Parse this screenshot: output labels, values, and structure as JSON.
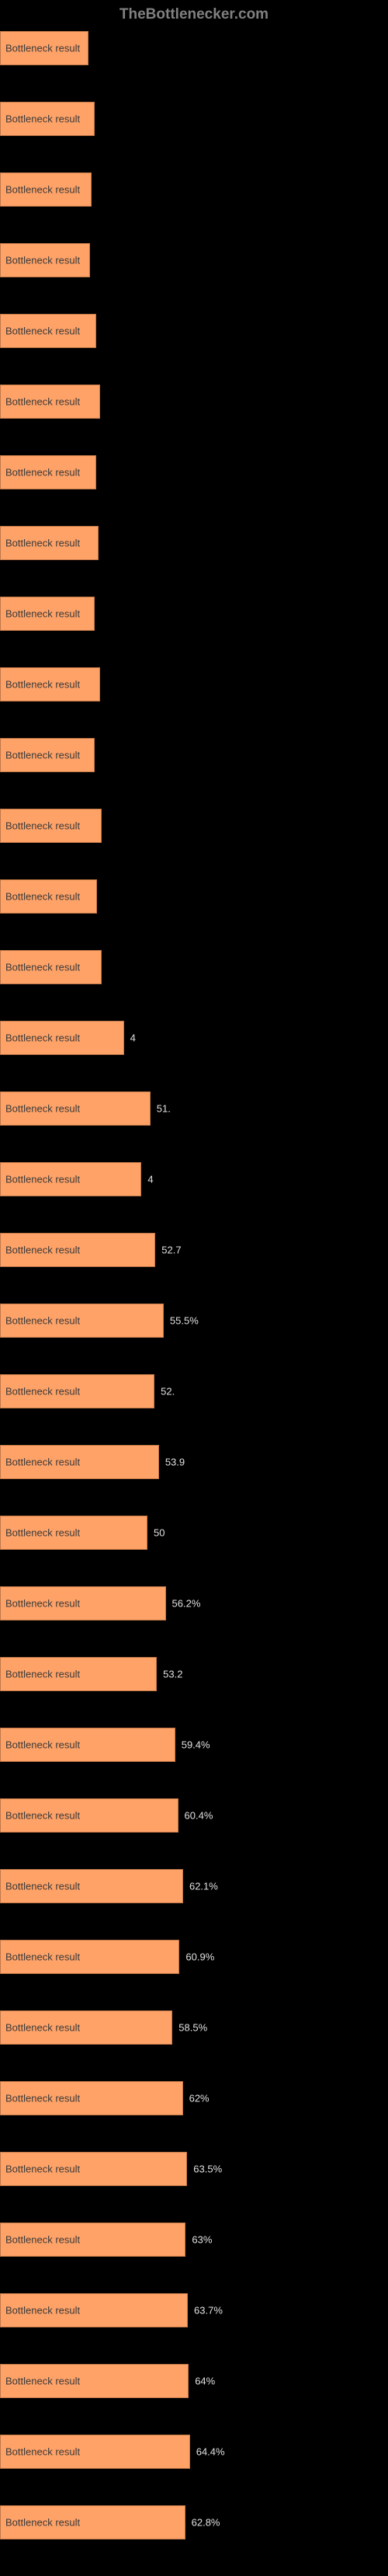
{
  "watermark": {
    "text": "TheBottlenecker.com",
    "color": "#808080"
  },
  "chart": {
    "type": "bar",
    "orientation": "horizontal",
    "background_color": "#000000",
    "bar_color": "#ffa267",
    "bar_border_color": "#c07848",
    "bar_label_color": "#3a3a3a",
    "value_label_color": "#e0e0e0",
    "chart_inner_width": 380,
    "max_value": 100,
    "rows": [
      {
        "label": "Bottleneck result",
        "value": 30.0,
        "value_text": ""
      },
      {
        "label": "Bottleneck result",
        "value": 32.0,
        "value_text": ""
      },
      {
        "label": "Bottleneck result",
        "value": 31.0,
        "value_text": ""
      },
      {
        "label": "Bottleneck result",
        "value": 30.5,
        "value_text": ""
      },
      {
        "label": "Bottleneck result",
        "value": 32.5,
        "value_text": ""
      },
      {
        "label": "Bottleneck result",
        "value": 34.0,
        "value_text": ""
      },
      {
        "label": "Bottleneck result",
        "value": 32.5,
        "value_text": ""
      },
      {
        "label": "Bottleneck result",
        "value": 33.5,
        "value_text": ""
      },
      {
        "label": "Bottleneck result",
        "value": 32.0,
        "value_text": ""
      },
      {
        "label": "Bottleneck result",
        "value": 34.0,
        "value_text": ""
      },
      {
        "label": "Bottleneck result",
        "value": 32.0,
        "value_text": ""
      },
      {
        "label": "Bottleneck result",
        "value": 34.5,
        "value_text": ""
      },
      {
        "label": "Bottleneck result",
        "value": 33.0,
        "value_text": ""
      },
      {
        "label": "Bottleneck result",
        "value": 34.5,
        "value_text": ""
      },
      {
        "label": "Bottleneck result",
        "value": 42.0,
        "value_text": "4"
      },
      {
        "label": "Bottleneck result",
        "value": 51.0,
        "value_text": "51."
      },
      {
        "label": "Bottleneck result",
        "value": 48.0,
        "value_text": "4"
      },
      {
        "label": "Bottleneck result",
        "value": 52.7,
        "value_text": "52.7"
      },
      {
        "label": "Bottleneck result",
        "value": 55.5,
        "value_text": "55.5%"
      },
      {
        "label": "Bottleneck result",
        "value": 52.4,
        "value_text": "52."
      },
      {
        "label": "Bottleneck result",
        "value": 53.9,
        "value_text": "53.9"
      },
      {
        "label": "Bottleneck result",
        "value": 50.0,
        "value_text": "50"
      },
      {
        "label": "Bottleneck result",
        "value": 56.2,
        "value_text": "56.2%"
      },
      {
        "label": "Bottleneck result",
        "value": 53.2,
        "value_text": "53.2"
      },
      {
        "label": "Bottleneck result",
        "value": 59.4,
        "value_text": "59.4%"
      },
      {
        "label": "Bottleneck result",
        "value": 60.4,
        "value_text": "60.4%"
      },
      {
        "label": "Bottleneck result",
        "value": 62.1,
        "value_text": "62.1%"
      },
      {
        "label": "Bottleneck result",
        "value": 60.9,
        "value_text": "60.9%"
      },
      {
        "label": "Bottleneck result",
        "value": 58.5,
        "value_text": "58.5%"
      },
      {
        "label": "Bottleneck result",
        "value": 62.0,
        "value_text": "62%"
      },
      {
        "label": "Bottleneck result",
        "value": 63.5,
        "value_text": "63.5%"
      },
      {
        "label": "Bottleneck result",
        "value": 63.0,
        "value_text": "63%"
      },
      {
        "label": "Bottleneck result",
        "value": 63.7,
        "value_text": "63.7%"
      },
      {
        "label": "Bottleneck result",
        "value": 64.0,
        "value_text": "64%"
      },
      {
        "label": "Bottleneck result",
        "value": 64.4,
        "value_text": "64.4%"
      },
      {
        "label": "Bottleneck result",
        "value": 62.8,
        "value_text": "62.8%"
      }
    ]
  }
}
